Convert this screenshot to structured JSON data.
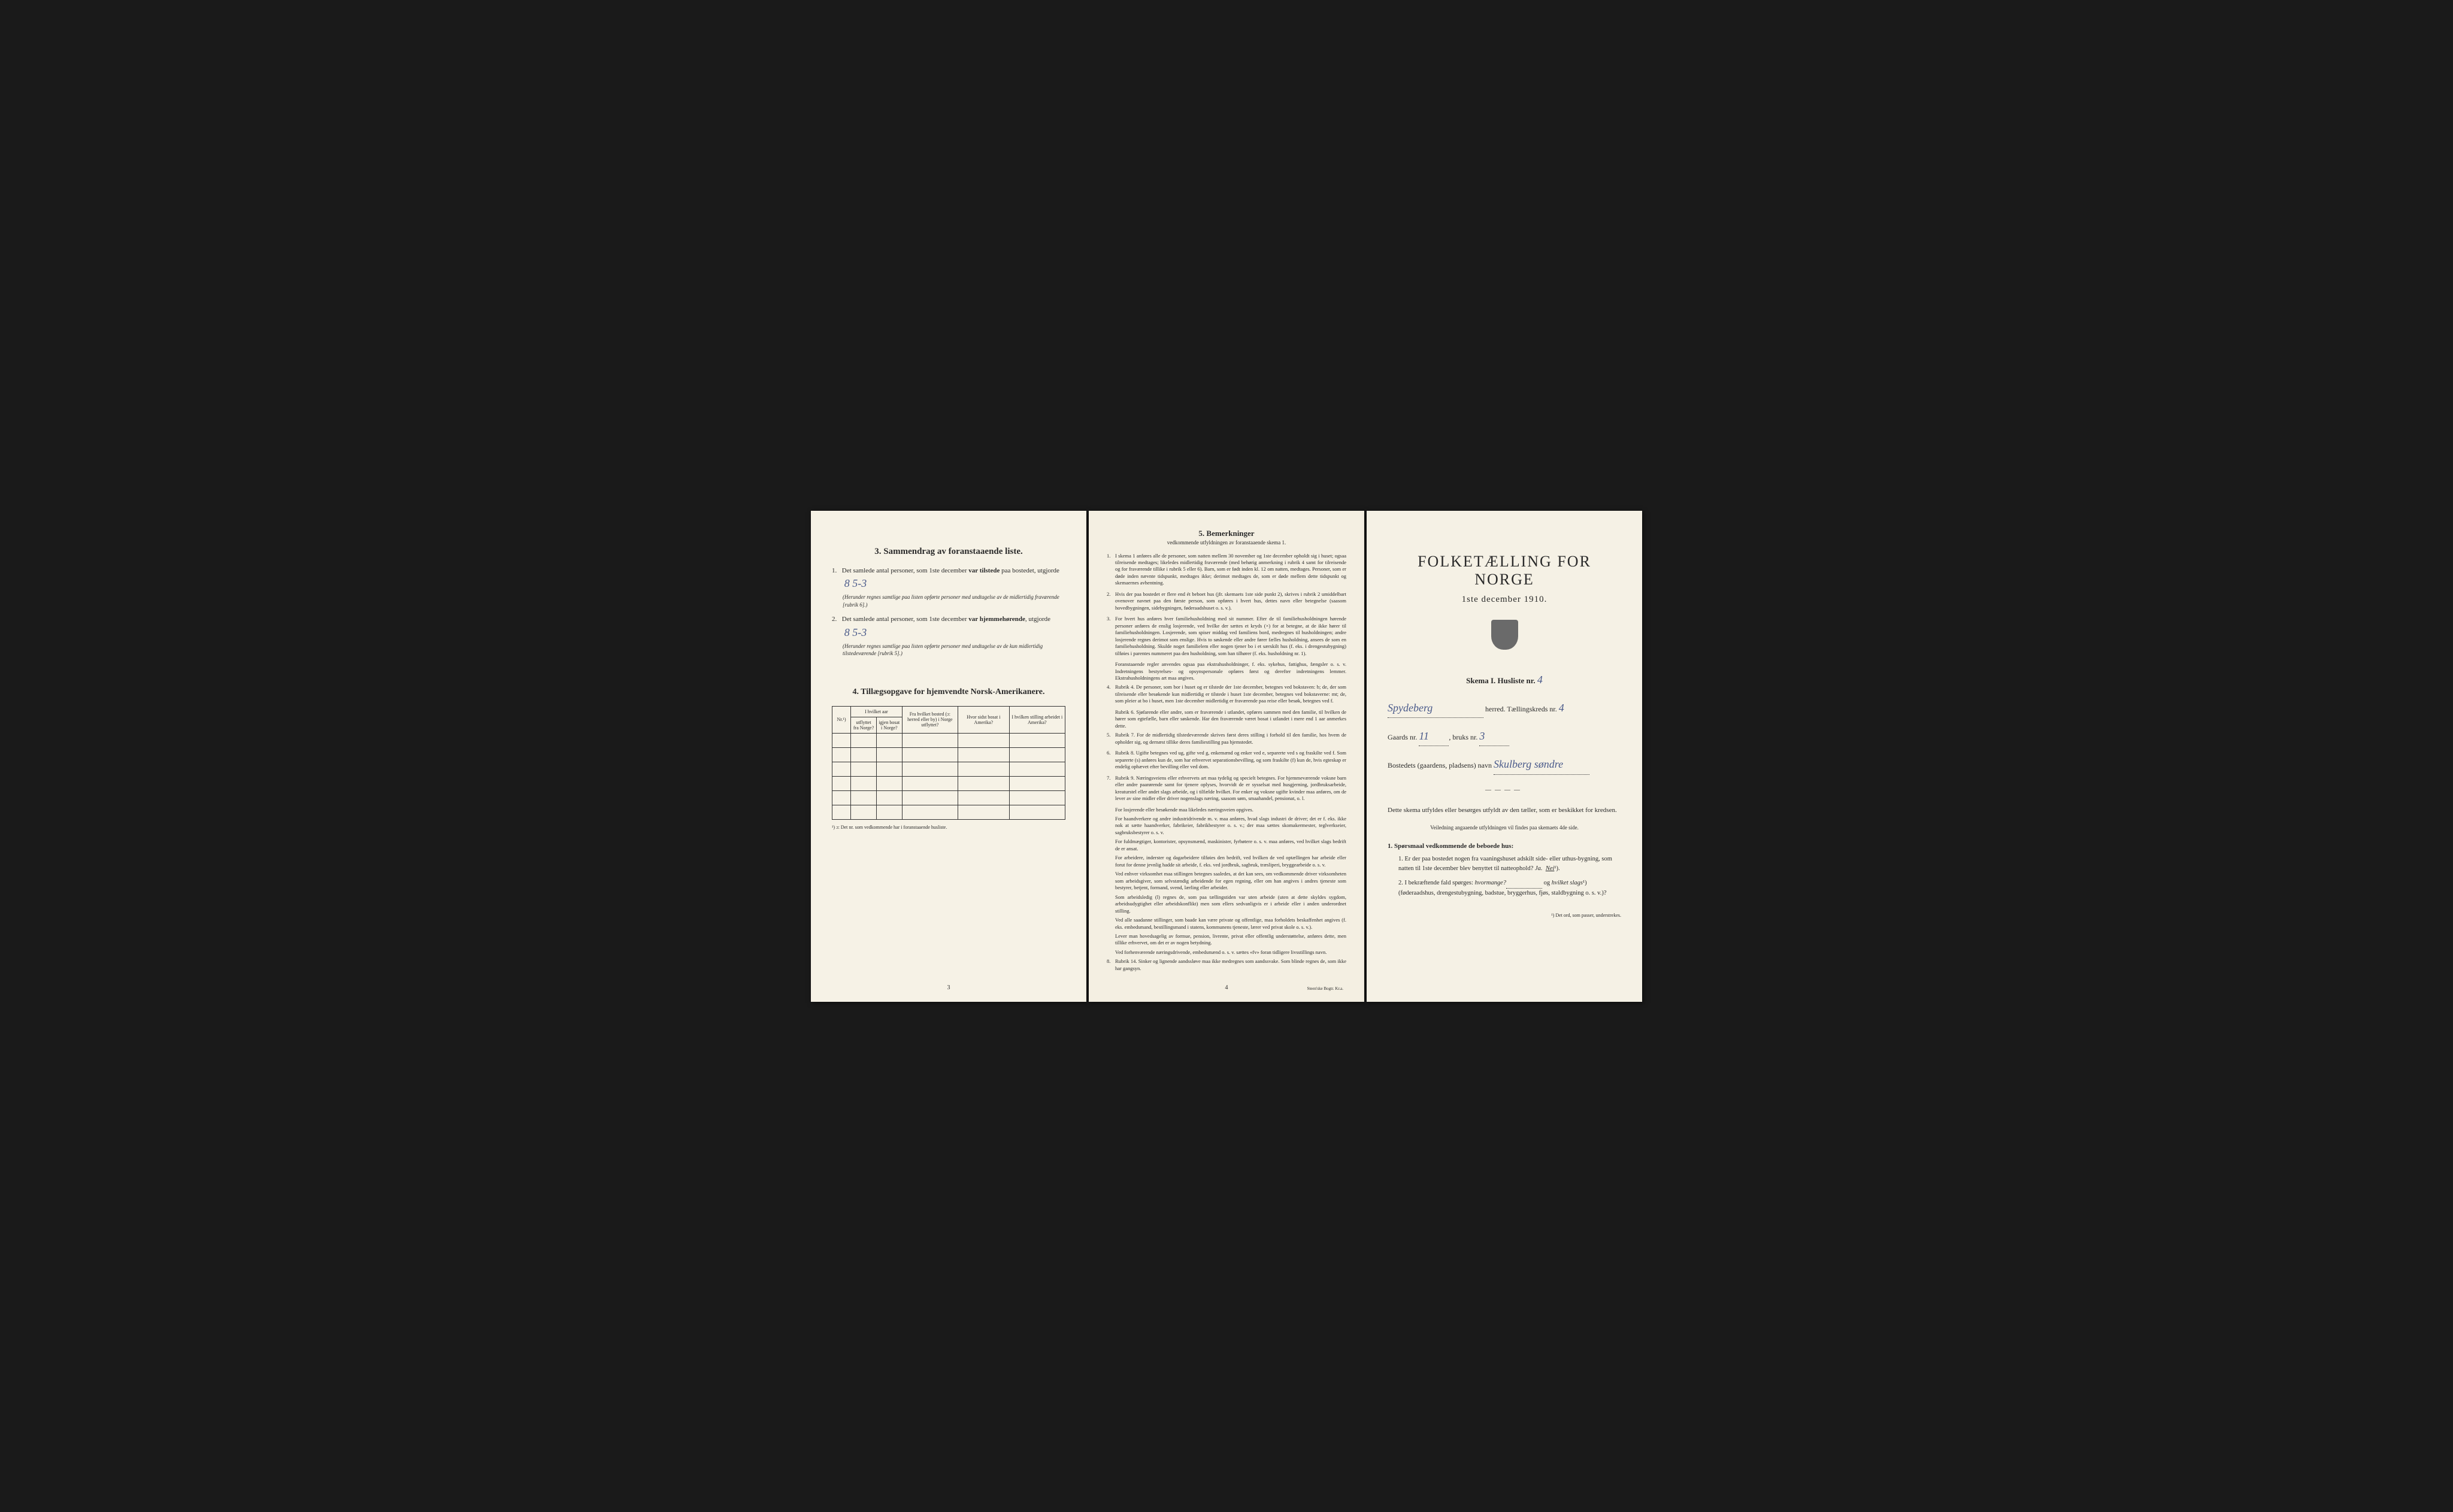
{
  "page1": {
    "section3": {
      "title": "3.  Sammendrag av foranstaaende liste.",
      "item1": {
        "num": "1.",
        "text_before": "Det samlede antal personer, som 1ste december ",
        "bold1": "var tilstede",
        "text_after": " paa bostedet, utgjorde ",
        "value": "8    5-3",
        "note": "(Herunder regnes samtlige paa listen opførte personer med undtagelse av de midlertidig fraværende [rubrik 6].)"
      },
      "item2": {
        "num": "2.",
        "text_before": "Det samlede antal personer, som 1ste december ",
        "bold1": "var hjemmehørende",
        "text_after": ", utgjorde ",
        "value": "8    5-3",
        "note": "(Herunder regnes samtlige paa listen opførte personer med undtagelse av de kun midlertidig tilstedeværende [rubrik 5].)"
      }
    },
    "section4": {
      "title": "4.  Tillægsopgave for hjemvendte Norsk-Amerikanere.",
      "headers": {
        "col1": "Nr.¹)",
        "col2a": "I hvilket aar",
        "col2b": "utflyttet fra Norge?",
        "col2c": "igjen bosat i Norge?",
        "col3": "Fra hvilket bosted (ɔ: herred eller by) i Norge utflyttet?",
        "col4": "Hvor sidst bosat i Amerika?",
        "col5": "I hvilken stilling arbeidet i Amerika?"
      },
      "footnote": "¹) ɔ: Det nr. som vedkommende har i foranstaaende husliste."
    },
    "page_num": "3"
  },
  "page2": {
    "title": "5.  Bemerkninger",
    "subtitle": "vedkommende utfyldningen av foranstaaende skema 1.",
    "items": [
      {
        "num": "1.",
        "text": "I skema 1 anføres alle de personer, som natten mellem 30 november og 1ste december opholdt sig i huset; ogsaa tilreisende medtages; likeledes midlertidig fraværende (med behørig anmerkning i rubrik 4 samt for tilreisende og for fraværende tillike i rubrik 5 eller 6). Barn, som er født inden kl. 12 om natten, medtages. Personer, som er døde inden nævnte tidspunkt, medtages ikke; derimot medtages de, som er døde mellem dette tidspunkt og skemaernes avhentning."
      },
      {
        "num": "2.",
        "text": "Hvis der paa bostedet er flere end ét beboet hus (jfr. skemaets 1ste side punkt 2), skrives i rubrik 2 umiddelbart ovenover navnet paa den første person, som opføres i hvert hus, dettes navn eller betegnelse (saasom hovedbygningen, sidebygningen, føderaadshuset o. s. v.)."
      },
      {
        "num": "3.",
        "text": "For hvert hus anføres hver familiehusholdning med sit nummer. Efter de til familiehusholdningen hørende personer anføres de enslig losjerende, ved hvilke der sættes et kryds (×) for at betegne, at de ikke hører til familiehusholdningen. Losjerende, som spiser middag ved familiens bord, medregnes til husholdningen; andre losjerende regnes derimot som enslige. Hvis to søskende eller andre fører fælles husholdning, ansees de som en familiehusholdning. Skulde noget familielem eller nogen tjener bo i et særskilt hus (f. eks. i drengestubygning) tilføies i parentes nummeret paa den husholdning, som han tilhører (f. eks. husholdning nr. 1)."
      },
      {
        "num": "",
        "text": "Foranstaaende regler anvendes ogsaa paa ekstrahusholdninger, f. eks. sykehus, fattighus, fængsler o. s. v. Indretningens bestyrelses- og opsynspersonale opføres først og derefter indretningens lemmer. Ekstrahusholdningens art maa angives."
      },
      {
        "num": "4.",
        "text": "Rubrik 4. De personer, som bor i huset og er tilstede der 1ste december, betegnes ved bokstaven: b; de, der som tilreisende eller besøkende kun midlertidig er tilstede i huset 1ste december, betegnes ved bokstaverne: mt; de, som pleier at bo i huset, men 1ste december midlertidig er fraværende paa reise eller besøk, betegnes ved f."
      },
      {
        "num": "",
        "text": "Rubrik 6. Sjøfarende eller andre, som er fraværende i utlandet, opføres sammen med den familie, til hvilken de hører som egtefælle, barn eller søskende. Har den fraværende været bosat i utlandet i mere end 1 aar anmerkes dette."
      },
      {
        "num": "5.",
        "text": "Rubrik 7. For de midlertidig tilstedeværende skrives først deres stilling i forhold til den familie, hos hvem de opholder sig, og dernæst tillike deres familiestilling paa hjemstedet."
      },
      {
        "num": "6.",
        "text": "Rubrik 8. Ugifte betegnes ved ug, gifte ved g, enkemænd og enker ved e, separerte ved s og fraskilte ved f. Som separerte (s) anføres kun de, som har erhvervet separationsbevilling, og som fraskilte (f) kun de, hvis egteskap er endelig ophævet efter bevilling eller ved dom."
      },
      {
        "num": "7.",
        "text": "Rubrik 9. Næringsveiens eller erhvervets art maa tydelig og specielt betegnes. For hjemmeværende voksne barn eller andre paarørende samt for tjenere oplyses, hvorvidt de er sysselsat med husgjerning, jordbruksarbeide, kreaturstel eller andet slags arbeide, og i tilfælde hvilket. For enker og voksne ugifte kvinder maa anføres, om de lever av sine midler eller driver nogenslags næring, saasom søm, smaahandel, pensionat, o. l."
      },
      {
        "num": "",
        "text": "For losjerende eller besøkende maa likeledes næringsveien opgives."
      },
      {
        "num": "",
        "text": "For haandverkere og andre industridrivende m. v. maa anføres, hvad slags industri de driver; det er f. eks. ikke nok at sætte haandverker, fabrikeier, fabrikbestyrer o. s. v.; der maa sættes skomakermester, teglverkseier, sagbruksbestyrer o. s. v."
      },
      {
        "num": "",
        "text": "For fuldmægtiger, kontorister, opsynsmænd, maskinister, fyrbøtere o. s. v. maa anføres, ved hvilket slags bedrift de er ansat."
      },
      {
        "num": "",
        "text": "For arbeidere, inderster og dagarbeidere tilføies den bedrift, ved hvilken de ved optællingen har arbeide eller forut for denne jevnlig hadde sit arbeide, f. eks. ved jordbruk, sagbruk, træsliperi, bryggearbeide o. s. v."
      },
      {
        "num": "",
        "text": "Ved enhver virksomhet maa stillingen betegnes saaledes, at det kan sees, om vedkommende driver virksomheten som arbeidsgiver, som selvstændig arbeidende for egen regning, eller om han angives i andres tjeneste som bestyrer, betjent, formand, svend, lærling eller arbeider."
      },
      {
        "num": "",
        "text": "Som arbeidsledig (l) regnes de, som paa tællingstiden var uten arbeide (uten at dette skyldes sygdom, arbeidsudygtighet eller arbeidskonflikt) men som ellers sedvanligvis er i arbeide eller i anden underordnet stilling."
      },
      {
        "num": "",
        "text": "Ved alle saadanne stillinger, som baade kan være private og offentlige, maa forholdets beskaffenhet angives (f. eks. embedsmand, bestillingsmand i statens, kommunens tjeneste, lærer ved privat skole o. s. v.)."
      },
      {
        "num": "",
        "text": "Lever man hovedsagelig av formue, pension, livrente, privat eller offentlig understøttelse, anføres dette, men tillike erhvervet, om det er av nogen betydning."
      },
      {
        "num": "",
        "text": "Ved forhenværende næringsdrivende, embedsmænd o. s. v. sættes «fv» foran tidligere livsstillings navn."
      },
      {
        "num": "8.",
        "text": "Rubrik 14. Sinker og lignende aandssløve maa ikke medregnes som aandssvake. Som blinde regnes de, som ikke har gangsyn."
      }
    ],
    "page_num": "4",
    "printer": "Steen'ske Bogtr. Kr.a."
  },
  "page3": {
    "main_title": "FOLKETÆLLING FOR NORGE",
    "date": "1ste december 1910.",
    "skema": "Skema I.  Husliste nr.",
    "skema_val": "4",
    "herred_label": "herred.  Tællingskreds nr.",
    "herred_name": "Spydeberg",
    "kreds_val": "4",
    "gaard_label": "Gaards nr.",
    "gaard_val": "11",
    "bruks_label": "bruks nr.",
    "bruks_val": "3",
    "bosted_label": "Bostedets (gaardens, pladsens) navn",
    "bosted_val": "Skulberg søndre",
    "divider": "————",
    "instruction": "Dette skema utfyldes eller besørges utfyldt av den tæller, som er beskikket for kredsen.",
    "instruction_sub": "Veiledning angaaende utfyldningen vil findes paa skemaets 4de side.",
    "q_title": "1. Spørsmaal vedkommende de beboede hus:",
    "q1": {
      "num": "1.",
      "text": "Er der paa bostedet nogen fra vaaningshuset adskilt side- eller uthus-bygning, som natten til 1ste december blev benyttet til natteophold?",
      "ja": "Ja.",
      "nei": "Nei",
      "sup": "¹)."
    },
    "q2": {
      "num": "2.",
      "text_a": "I bekræftende fald spørges: ",
      "hvormange": "hvormange?",
      "text_b": " og ",
      "hvilket": "hvilket slags",
      "sup": "¹)",
      "text_c": " (føderaadshus, drengestubygning, badstue, bryggerhus, fjøs, staldbygning o. s. v.)?"
    },
    "footnote": "¹) Det ord, som passer, understrekes."
  }
}
